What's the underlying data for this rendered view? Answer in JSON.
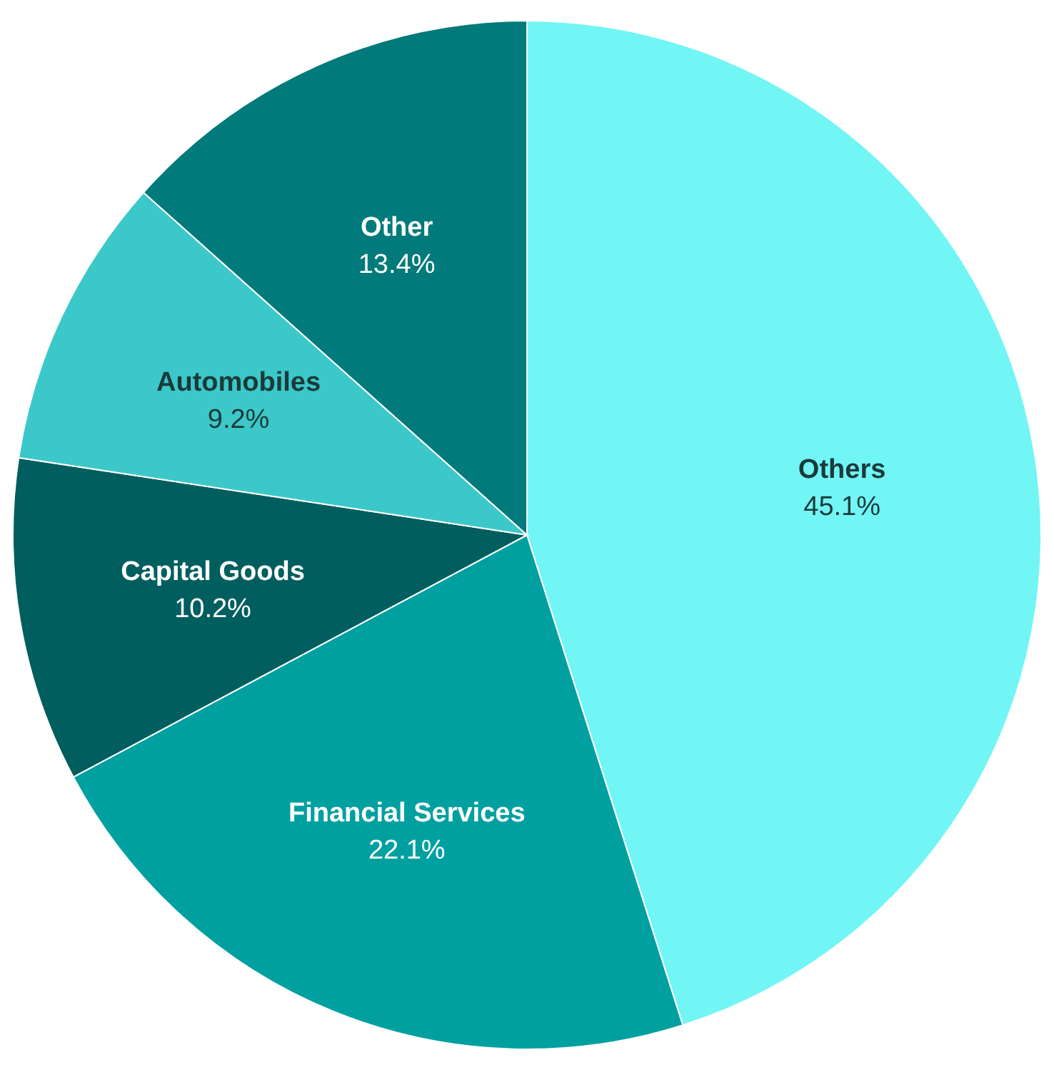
{
  "chart_data": {
    "type": "pie",
    "categories": [
      "Others",
      "Financial Services",
      "Capital Goods",
      "Automobiles",
      "Other"
    ],
    "values": [
      45.1,
      22.1,
      10.2,
      9.2,
      13.4
    ],
    "value_labels": [
      "45.1%",
      "22.1%",
      "10.2%",
      "9.2%",
      "13.4%"
    ],
    "colors": [
      "#72f5f5",
      "#00a0a0",
      "#005e5e",
      "#3cc8c8",
      "#007a7a"
    ]
  }
}
